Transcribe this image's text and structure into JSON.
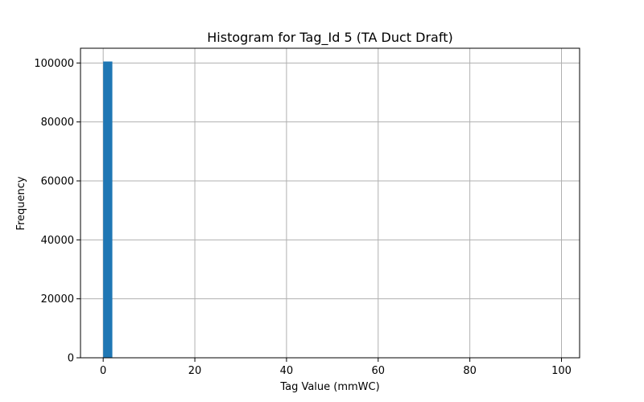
{
  "chart_data": {
    "type": "bar",
    "title": "Histogram for Tag_Id 5 (TA Duct Draft)",
    "xlabel": "Tag Value (mmWC)",
    "ylabel": "Frequency",
    "xlim": [
      -4.95,
      103.95
    ],
    "ylim": [
      0,
      105000
    ],
    "xticks": [
      0,
      20,
      40,
      60,
      80,
      100
    ],
    "yticks": [
      0,
      20000,
      40000,
      60000,
      80000,
      100000
    ],
    "grid": true,
    "bar_color": "#1f77b4",
    "bins": [
      {
        "x0": 0,
        "x1": 2,
        "count": 100500
      }
    ]
  }
}
